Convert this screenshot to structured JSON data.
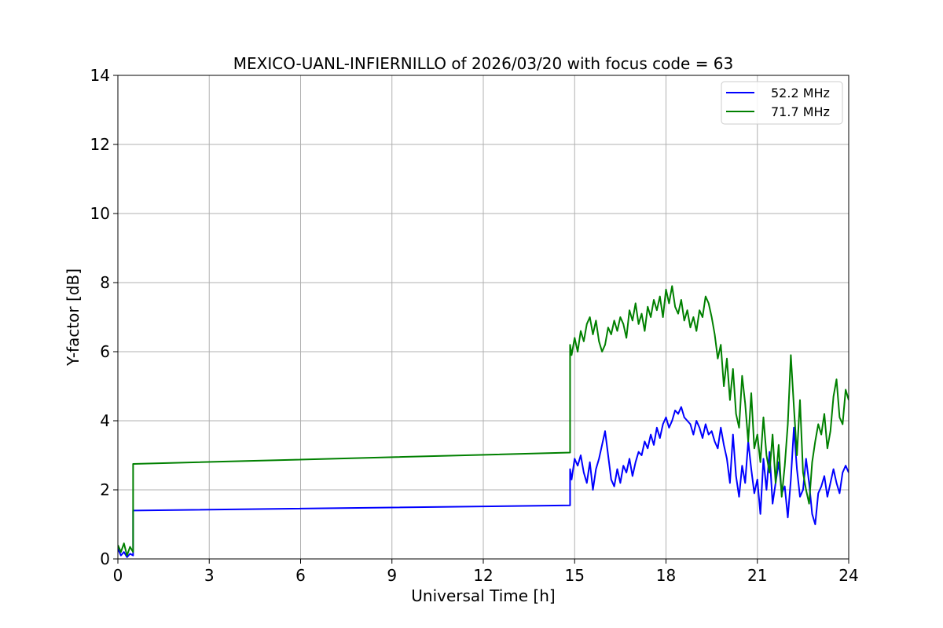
{
  "chart_data": {
    "type": "line",
    "title": "MEXICO-UANL-INFIERNILLO of 2026/03/20 with focus code = 63",
    "xlabel": "Universal Time [h]",
    "ylabel": "Y-factor [dB]",
    "xlim": [
      0,
      24
    ],
    "ylim": [
      0,
      14
    ],
    "xticks": [
      0,
      3,
      6,
      9,
      12,
      15,
      18,
      21,
      24
    ],
    "yticks": [
      0,
      2,
      4,
      6,
      8,
      10,
      12,
      14
    ],
    "grid": true,
    "legend_position": "top-right",
    "series": [
      {
        "name": "52.2 MHz",
        "color": "#0000ff",
        "x": [
          0,
          0.1,
          0.2,
          0.3,
          0.4,
          0.5,
          0.5,
          14.85,
          14.85,
          14.9,
          15.0,
          15.1,
          15.2,
          15.3,
          15.4,
          15.5,
          15.6,
          15.7,
          15.8,
          15.9,
          16.0,
          16.1,
          16.2,
          16.3,
          16.4,
          16.5,
          16.6,
          16.7,
          16.8,
          16.9,
          17.0,
          17.1,
          17.2,
          17.3,
          17.4,
          17.5,
          17.6,
          17.7,
          17.8,
          17.9,
          18.0,
          18.1,
          18.2,
          18.3,
          18.4,
          18.5,
          18.6,
          18.7,
          18.8,
          18.9,
          19.0,
          19.1,
          19.2,
          19.3,
          19.4,
          19.5,
          19.6,
          19.7,
          19.8,
          19.9,
          20.0,
          20.1,
          20.2,
          20.3,
          20.4,
          20.5,
          20.6,
          20.7,
          20.8,
          20.9,
          21.0,
          21.1,
          21.2,
          21.3,
          21.4,
          21.5,
          21.6,
          21.7,
          21.8,
          21.9,
          22.0,
          22.1,
          22.2,
          22.3,
          22.4,
          22.5,
          22.6,
          22.7,
          22.8,
          22.9,
          23.0,
          23.1,
          23.2,
          23.3,
          23.4,
          23.5,
          23.6,
          23.7,
          23.8,
          23.9,
          24.0
        ],
        "y": [
          0.3,
          0.1,
          0.2,
          0.05,
          0.15,
          0.1,
          1.4,
          1.55,
          2.6,
          2.3,
          2.9,
          2.7,
          3.0,
          2.5,
          2.2,
          2.8,
          2.0,
          2.6,
          2.9,
          3.3,
          3.7,
          3.0,
          2.3,
          2.1,
          2.6,
          2.2,
          2.7,
          2.5,
          2.9,
          2.4,
          2.8,
          3.1,
          3.0,
          3.4,
          3.2,
          3.6,
          3.3,
          3.8,
          3.5,
          3.9,
          4.1,
          3.8,
          4.0,
          4.3,
          4.2,
          4.4,
          4.1,
          4.0,
          3.9,
          3.6,
          4.0,
          3.8,
          3.5,
          3.9,
          3.6,
          3.7,
          3.4,
          3.2,
          3.8,
          3.3,
          2.9,
          2.2,
          3.6,
          2.4,
          1.8,
          2.7,
          2.2,
          3.4,
          2.6,
          1.9,
          2.3,
          1.3,
          2.9,
          2.0,
          3.1,
          1.6,
          2.2,
          2.8,
          1.9,
          2.1,
          1.2,
          2.3,
          3.8,
          2.6,
          1.8,
          2.0,
          2.9,
          2.2,
          1.3,
          1.0,
          1.9,
          2.1,
          2.4,
          1.8,
          2.2,
          2.6,
          2.2,
          1.9,
          2.5,
          2.7,
          2.5
        ]
      },
      {
        "name": "71.7 MHz",
        "color": "#008000",
        "x": [
          0,
          0.1,
          0.2,
          0.3,
          0.4,
          0.5,
          0.5,
          14.85,
          14.85,
          14.9,
          15.0,
          15.1,
          15.2,
          15.3,
          15.4,
          15.5,
          15.6,
          15.7,
          15.8,
          15.9,
          16.0,
          16.1,
          16.2,
          16.3,
          16.4,
          16.5,
          16.6,
          16.7,
          16.8,
          16.9,
          17.0,
          17.1,
          17.2,
          17.3,
          17.4,
          17.5,
          17.6,
          17.7,
          17.8,
          17.9,
          18.0,
          18.1,
          18.2,
          18.3,
          18.4,
          18.5,
          18.6,
          18.7,
          18.8,
          18.9,
          19.0,
          19.1,
          19.2,
          19.3,
          19.4,
          19.5,
          19.6,
          19.7,
          19.8,
          19.9,
          20.0,
          20.1,
          20.2,
          20.3,
          20.4,
          20.5,
          20.6,
          20.7,
          20.8,
          20.9,
          21.0,
          21.1,
          21.2,
          21.3,
          21.4,
          21.5,
          21.6,
          21.7,
          21.8,
          21.9,
          22.0,
          22.1,
          22.2,
          22.3,
          22.4,
          22.5,
          22.6,
          22.7,
          22.8,
          22.9,
          23.0,
          23.1,
          23.2,
          23.3,
          23.4,
          23.5,
          23.6,
          23.7,
          23.8,
          23.9,
          24.0
        ],
        "y": [
          0.4,
          0.2,
          0.45,
          0.1,
          0.35,
          0.2,
          2.75,
          3.08,
          6.2,
          5.9,
          6.4,
          6.0,
          6.6,
          6.3,
          6.8,
          7.0,
          6.5,
          6.9,
          6.3,
          6.0,
          6.2,
          6.7,
          6.5,
          6.9,
          6.6,
          7.0,
          6.8,
          6.4,
          7.2,
          6.9,
          7.4,
          6.8,
          7.1,
          6.6,
          7.3,
          7.0,
          7.5,
          7.2,
          7.6,
          7.0,
          7.8,
          7.4,
          7.9,
          7.3,
          7.1,
          7.5,
          6.9,
          7.2,
          6.7,
          7.0,
          6.6,
          7.2,
          7.0,
          7.6,
          7.4,
          7.0,
          6.5,
          5.8,
          6.2,
          5.0,
          5.8,
          4.6,
          5.5,
          4.2,
          3.8,
          5.3,
          4.5,
          3.4,
          4.8,
          3.2,
          3.6,
          2.8,
          4.1,
          3.0,
          2.5,
          3.6,
          2.2,
          3.3,
          1.8,
          2.7,
          3.9,
          5.9,
          4.4,
          3.0,
          4.6,
          2.5,
          2.0,
          1.6,
          2.8,
          3.4,
          3.9,
          3.6,
          4.2,
          3.2,
          3.7,
          4.7,
          5.2,
          4.1,
          3.9,
          4.9,
          4.6
        ]
      }
    ]
  }
}
